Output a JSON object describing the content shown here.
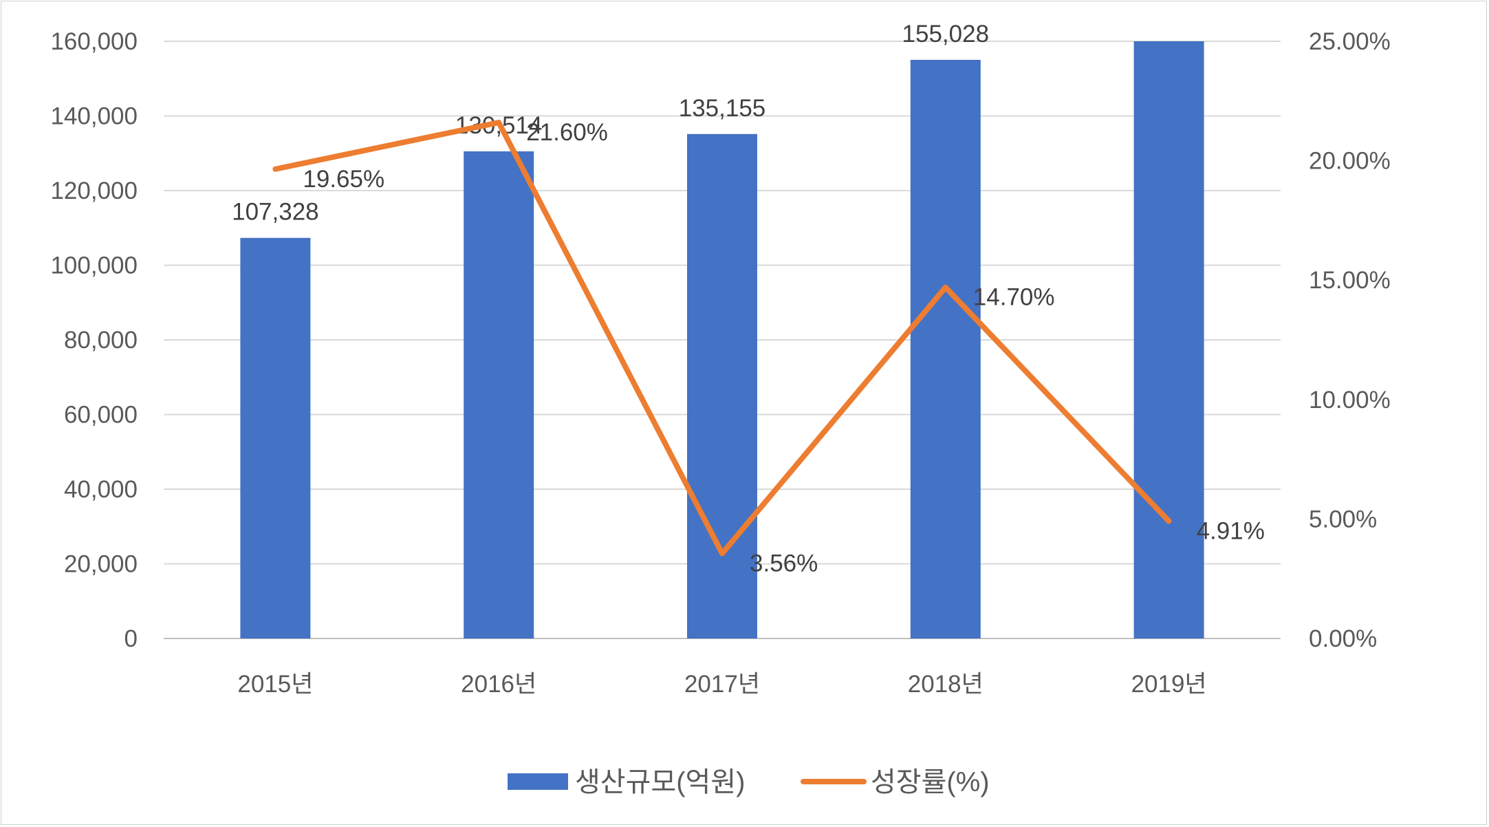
{
  "chart_data": {
    "type": "bar+line",
    "title": "",
    "categories": [
      "2015년",
      "2016년",
      "2017년",
      "2018년",
      "2019년"
    ],
    "series": [
      {
        "name": "생산규모(억원)",
        "type": "bar",
        "axis": "left",
        "color": "#4472C4",
        "values": [
          107328,
          130514,
          135155,
          155028,
          162641
        ],
        "labels": [
          "107,328",
          "130,514",
          "135,155",
          "155,028",
          ""
        ]
      },
      {
        "name": "성장률(%)",
        "type": "line",
        "axis": "right",
        "color": "#ED7D31",
        "values": [
          19.65,
          21.6,
          3.56,
          14.7,
          4.91
        ],
        "labels": [
          "19.65%",
          "21.60%",
          "3.56%",
          "14.70%",
          "4.91%"
        ]
      }
    ],
    "y_left": {
      "ylim": [
        0,
        160000
      ],
      "ticks": [
        "0",
        "20,000",
        "40,000",
        "60,000",
        "80,000",
        "100,000",
        "120,000",
        "140,000",
        "160,000"
      ]
    },
    "y_right": {
      "ylim": [
        0,
        25
      ],
      "ticks": [
        "0.00%",
        "5.00%",
        "10.00%",
        "15.00%",
        "20.00%",
        "25.00%"
      ]
    },
    "grid": true,
    "legend": "bottom-center"
  }
}
